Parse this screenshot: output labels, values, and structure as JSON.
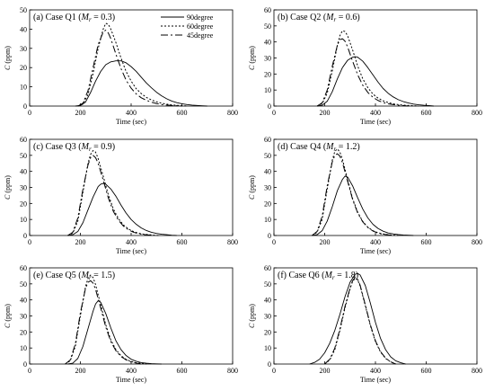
{
  "chart_data": [
    {
      "type": "line",
      "panel_label": "(a) Case Q1 (",
      "param_symbol": "M",
      "param_sub": "r",
      "param_value": " = 0.3)",
      "xlabel": "Time (sec)",
      "ylabel_symbol": "C",
      "ylabel_unit": " (ppm)",
      "xlim": [
        0,
        800
      ],
      "ylim": [
        0,
        50
      ],
      "xticks": [
        0,
        200,
        400,
        600,
        800
      ],
      "yticks": [
        0,
        10,
        20,
        30,
        40,
        50
      ],
      "legend": {
        "position": "top-right",
        "show": true
      },
      "series": [
        {
          "name": "90degree",
          "style": "solid",
          "x": [
            180,
            200,
            220,
            240,
            260,
            280,
            300,
            320,
            340,
            360,
            380,
            400,
            420,
            440,
            460,
            480,
            500,
            520,
            540,
            560,
            580,
            600,
            620,
            640,
            660,
            680,
            700
          ],
          "y": [
            0,
            0.3,
            2,
            7,
            13,
            18,
            21.5,
            23,
            23.5,
            23.5,
            22.5,
            20.5,
            18,
            15,
            12,
            9.5,
            7.2,
            5.3,
            3.8,
            2.6,
            1.8,
            1.2,
            0.8,
            0.5,
            0.3,
            0.15,
            0
          ]
        },
        {
          "name": "60degree",
          "style": "dotted",
          "x": [
            190,
            210,
            230,
            250,
            270,
            290,
            300,
            310,
            320,
            340,
            360,
            380,
            400,
            420,
            440,
            460,
            480,
            500,
            520,
            540,
            560,
            580,
            600,
            620
          ],
          "y": [
            0,
            1,
            6,
            17,
            30,
            40,
            43,
            42.5,
            40,
            33,
            25,
            18,
            13,
            9,
            6.5,
            4.5,
            3.2,
            2.2,
            1.5,
            1,
            0.6,
            0.4,
            0.2,
            0
          ]
        },
        {
          "name": "45degree",
          "style": "dashdot",
          "x": [
            190,
            210,
            230,
            250,
            270,
            290,
            300,
            310,
            320,
            340,
            360,
            380,
            400,
            420,
            440,
            460,
            480,
            500,
            520,
            540,
            560,
            580,
            600
          ],
          "y": [
            0,
            1.5,
            8,
            20,
            32,
            38.5,
            39.5,
            38,
            35,
            27,
            19.5,
            13.5,
            9.3,
            6.3,
            4.3,
            3,
            2,
            1.3,
            0.8,
            0.5,
            0.3,
            0.15,
            0
          ]
        }
      ]
    },
    {
      "type": "line",
      "panel_label": "(b) Case Q2 (",
      "param_symbol": "M",
      "param_sub": "r",
      "param_value": " = 0.6)",
      "xlabel": "Time (sec)",
      "ylabel_symbol": "C",
      "ylabel_unit": " (ppm)",
      "xlim": [
        0,
        800
      ],
      "ylim": [
        0,
        60
      ],
      "xticks": [
        0,
        200,
        400,
        600,
        800
      ],
      "yticks": [
        0,
        10,
        20,
        30,
        40,
        50,
        60
      ],
      "legend": {
        "show": false
      },
      "series": [
        {
          "name": "90degree",
          "style": "solid",
          "x": [
            170,
            190,
            210,
            230,
            250,
            270,
            290,
            310,
            320,
            330,
            350,
            370,
            390,
            410,
            430,
            450,
            470,
            490,
            510,
            530,
            550,
            570,
            590,
            610,
            630
          ],
          "y": [
            0,
            0.5,
            3,
            9,
            17,
            24,
            28.5,
            30.5,
            30.8,
            30.5,
            28,
            24,
            19.5,
            15,
            11,
            8,
            5.7,
            4,
            2.8,
            1.9,
            1.2,
            0.8,
            0.5,
            0.3,
            0
          ]
        },
        {
          "name": "60degree",
          "style": "dotted",
          "x": [
            170,
            190,
            210,
            230,
            250,
            260,
            270,
            280,
            290,
            310,
            330,
            350,
            370,
            390,
            410,
            430,
            450,
            470,
            490,
            510,
            530,
            550,
            570
          ],
          "y": [
            0,
            1.5,
            8,
            22,
            38,
            44,
            47,
            46.5,
            44,
            35,
            25,
            17,
            11.5,
            7.5,
            5,
            3.3,
            2.2,
            1.4,
            0.9,
            0.6,
            0.4,
            0.2,
            0
          ]
        },
        {
          "name": "45degree",
          "style": "dashdot",
          "x": [
            170,
            190,
            210,
            230,
            250,
            260,
            270,
            280,
            290,
            310,
            330,
            350,
            370,
            390,
            410,
            430,
            450,
            470,
            490,
            510,
            530
          ],
          "y": [
            0,
            2,
            10,
            25,
            38,
            41.5,
            42,
            40.5,
            37,
            28,
            19.5,
            13,
            8.5,
            5.5,
            3.5,
            2.2,
            1.4,
            0.9,
            0.5,
            0.3,
            0
          ]
        }
      ]
    },
    {
      "type": "line",
      "panel_label": "(c) Case Q3 (",
      "param_symbol": "M",
      "param_sub": "r",
      "param_value": " = 0.9)",
      "xlabel": "Time (sec)",
      "ylabel_symbol": "C",
      "ylabel_unit": " (ppm)",
      "xlim": [
        0,
        800
      ],
      "ylim": [
        0,
        60
      ],
      "xticks": [
        0,
        200,
        400,
        600,
        800
      ],
      "yticks": [
        0,
        10,
        20,
        30,
        40,
        50,
        60
      ],
      "legend": {
        "show": false
      },
      "series": [
        {
          "name": "90degree",
          "style": "solid",
          "x": [
            150,
            170,
            190,
            210,
            230,
            250,
            270,
            280,
            290,
            300,
            320,
            340,
            360,
            380,
            400,
            420,
            440,
            460,
            480,
            500,
            520,
            540,
            560,
            580
          ],
          "y": [
            0,
            0.5,
            2.5,
            8,
            16,
            24,
            30.5,
            32,
            32.5,
            32,
            29,
            24.5,
            19,
            14,
            10,
            7,
            4.7,
            3.1,
            2,
            1.3,
            0.8,
            0.5,
            0.2,
            0
          ]
        },
        {
          "name": "60degree",
          "style": "dotted",
          "x": [
            150,
            170,
            190,
            210,
            230,
            240,
            250,
            260,
            270,
            290,
            310,
            330,
            350,
            370,
            390,
            410,
            430,
            450,
            470,
            490,
            510
          ],
          "y": [
            0,
            1.5,
            9,
            27,
            45,
            50.5,
            53,
            52,
            48,
            37,
            25.5,
            16.5,
            10.5,
            6.5,
            4,
            2.4,
            1.4,
            0.8,
            0.5,
            0.2,
            0
          ]
        },
        {
          "name": "45degree",
          "style": "dashdot",
          "x": [
            150,
            170,
            190,
            210,
            230,
            240,
            250,
            260,
            270,
            290,
            310,
            330,
            350,
            370,
            390,
            410,
            430,
            450,
            470,
            490
          ],
          "y": [
            0,
            2,
            11,
            29,
            44,
            48.5,
            50,
            48.5,
            45,
            34.5,
            23.5,
            15,
            9.5,
            5.8,
            3.5,
            2,
            1.1,
            0.6,
            0.3,
            0
          ]
        }
      ]
    },
    {
      "type": "line",
      "panel_label": "(d) Case Q4 (",
      "param_symbol": "M",
      "param_sub": "r",
      "param_value": " = 1.2)",
      "xlabel": "Time (sec)",
      "ylabel_symbol": "C",
      "ylabel_unit": " (ppm)",
      "xlim": [
        0,
        800
      ],
      "ylim": [
        0,
        60
      ],
      "xticks": [
        0,
        200,
        400,
        600,
        800
      ],
      "yticks": [
        0,
        10,
        20,
        30,
        40,
        50,
        60
      ],
      "legend": {
        "show": false
      },
      "series": [
        {
          "name": "90degree",
          "style": "solid",
          "x": [
            150,
            170,
            190,
            210,
            230,
            250,
            270,
            280,
            290,
            310,
            330,
            350,
            370,
            390,
            410,
            430,
            450,
            470,
            490,
            510,
            530,
            550
          ],
          "y": [
            0,
            0.5,
            3,
            9,
            18,
            28,
            35,
            37,
            36.5,
            31,
            23.5,
            16.5,
            11,
            7,
            4.4,
            2.7,
            1.6,
            1,
            0.6,
            0.3,
            0.15,
            0
          ]
        },
        {
          "name": "60degree",
          "style": "dotted",
          "x": [
            150,
            170,
            190,
            210,
            230,
            240,
            250,
            260,
            270,
            290,
            310,
            330,
            350,
            370,
            390,
            410,
            430,
            450,
            470,
            490
          ],
          "y": [
            0,
            2,
            10,
            29,
            47,
            52.5,
            54,
            52,
            47.5,
            35,
            23,
            14.5,
            8.8,
            5.2,
            3,
            1.7,
            1,
            0.5,
            0.2,
            0
          ]
        },
        {
          "name": "45degree",
          "style": "dashdot",
          "x": [
            150,
            170,
            190,
            210,
            230,
            240,
            250,
            260,
            270,
            290,
            310,
            330,
            350,
            370,
            390,
            410,
            430,
            450,
            470
          ],
          "y": [
            0,
            2.5,
            12,
            31,
            46,
            50,
            51,
            49.5,
            45.5,
            34,
            22.5,
            14,
            8.5,
            5,
            2.8,
            1.5,
            0.8,
            0.4,
            0
          ]
        }
      ]
    },
    {
      "type": "line",
      "panel_label": "(e) Case Q5 (",
      "param_symbol": "M",
      "param_sub": "r",
      "param_value": " = 1.5)",
      "xlabel": "Time (sec)",
      "ylabel_symbol": "C",
      "ylabel_unit": " (ppm)",
      "xlim": [
        0,
        800
      ],
      "ylim": [
        0,
        60
      ],
      "xticks": [
        0,
        200,
        400,
        600,
        800
      ],
      "yticks": [
        0,
        10,
        20,
        30,
        40,
        50,
        60
      ],
      "legend": {
        "show": false
      },
      "series": [
        {
          "name": "90degree",
          "style": "solid",
          "x": [
            150,
            170,
            190,
            210,
            230,
            250,
            260,
            270,
            280,
            300,
            320,
            340,
            360,
            380,
            400,
            420,
            440,
            460,
            480,
            500,
            520
          ],
          "y": [
            0,
            0.5,
            3.5,
            11,
            22,
            33,
            37.5,
            39.5,
            38.5,
            31.5,
            22.5,
            14.5,
            9,
            5.3,
            3,
            1.7,
            0.9,
            0.5,
            0.25,
            0.1,
            0
          ]
        },
        {
          "name": "60degree",
          "style": "dotted",
          "x": [
            140,
            160,
            180,
            200,
            220,
            230,
            240,
            250,
            260,
            280,
            300,
            320,
            340,
            360,
            380,
            400,
            420,
            440,
            460
          ],
          "y": [
            0,
            2,
            11,
            30,
            48,
            53.5,
            55.5,
            54,
            49.5,
            37,
            24.5,
            15,
            9,
            5.2,
            2.9,
            1.6,
            0.8,
            0.4,
            0
          ]
        },
        {
          "name": "45degree",
          "style": "dashdot",
          "x": [
            140,
            160,
            180,
            200,
            220,
            230,
            240,
            250,
            260,
            280,
            300,
            320,
            340,
            360,
            380,
            400,
            420,
            440
          ],
          "y": [
            0,
            2.5,
            12.5,
            32,
            47,
            51,
            52,
            50.5,
            46.5,
            35,
            23,
            14,
            8.3,
            4.7,
            2.6,
            1.3,
            0.6,
            0
          ]
        }
      ]
    },
    {
      "type": "line",
      "panel_label": "(f) Case Q6 (",
      "param_symbol": "M",
      "param_sub": "r",
      "param_value": " = 1.8)",
      "xlabel": "Time (sec)",
      "ylabel_symbol": "C",
      "ylabel_unit": " (ppm)",
      "xlim": [
        0,
        800
      ],
      "ylim": [
        0,
        60
      ],
      "xticks": [
        0,
        200,
        400,
        600,
        800
      ],
      "yticks": [
        0,
        10,
        20,
        30,
        40,
        50,
        60
      ],
      "legend": {
        "show": false
      },
      "series": [
        {
          "name": "90degree",
          "style": "solid",
          "x": [
            140,
            160,
            180,
            200,
            220,
            240,
            260,
            280,
            300,
            320,
            330,
            340,
            360,
            380,
            400,
            420,
            440,
            460,
            480,
            500,
            520
          ],
          "y": [
            0,
            1,
            3,
            7,
            13,
            21,
            31,
            42,
            51,
            56,
            56.5,
            55.5,
            49,
            38,
            26,
            16,
            9,
            4.5,
            2,
            0.8,
            0
          ]
        },
        {
          "name": "60degree",
          "style": "dotted",
          "x": [
            200,
            220,
            240,
            260,
            280,
            300,
            310,
            320,
            330,
            340,
            360,
            380,
            400,
            420,
            440,
            460,
            480
          ],
          "y": [
            0,
            2.5,
            9,
            21,
            35,
            47,
            51.5,
            53.5,
            52.5,
            48.5,
            36.5,
            24,
            14,
            7.5,
            3.5,
            1.3,
            0
          ]
        },
        {
          "name": "45degree",
          "style": "dashdot",
          "x": [
            200,
            220,
            240,
            260,
            280,
            300,
            310,
            320,
            330,
            340,
            360,
            380,
            400,
            420,
            440,
            460,
            480
          ],
          "y": [
            0,
            3,
            10,
            22,
            36,
            47.5,
            52,
            54,
            53,
            49,
            37,
            24.5,
            14.5,
            7.8,
            3.7,
            1.4,
            0
          ]
        }
      ]
    }
  ]
}
